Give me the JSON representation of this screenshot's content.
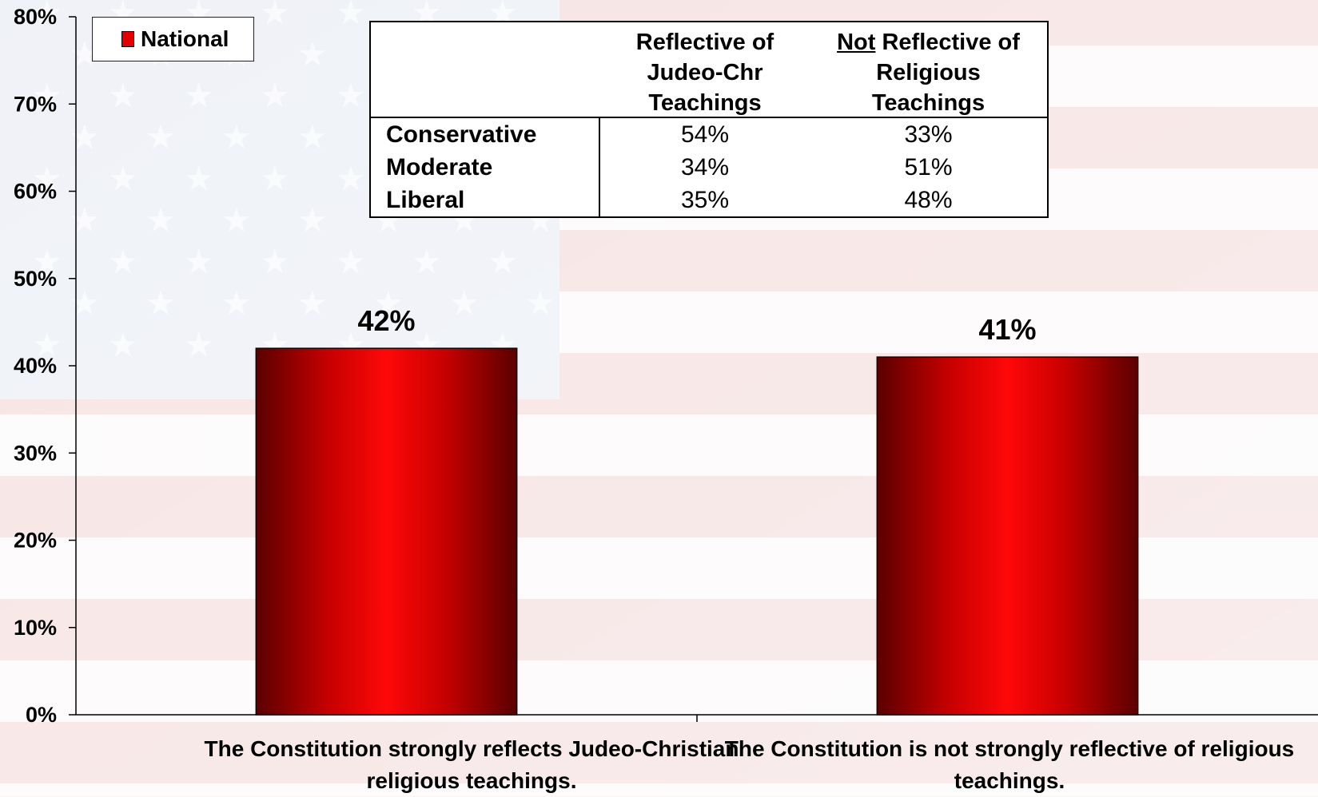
{
  "chart_data": {
    "type": "bar",
    "categories": [
      "The Constitution strongly reflects Judeo-Christian religious teachings.",
      "The Constitution is not strongly reflective of religious teachings."
    ],
    "category_lines": [
      [
        "The Constitution strongly reflects Judeo-Christian",
        "religious teachings."
      ],
      [
        "The Constitution is not strongly reflective of religious",
        "teachings."
      ]
    ],
    "series": [
      {
        "name": "National",
        "values": [
          42,
          41
        ],
        "labels": [
          "42%",
          "41%"
        ]
      }
    ],
    "ylim": [
      0,
      80
    ],
    "yticks": [
      "0%",
      "10%",
      "20%",
      "30%",
      "40%",
      "50%",
      "60%",
      "70%",
      "80%"
    ],
    "legend_position": "top-left",
    "grid": false,
    "bar_color": "#e00000",
    "inset_table": {
      "columns": [
        "",
        "Reflective of Judeo-Chr Teachings",
        "Not Reflective of Religious Teachings"
      ],
      "rows": [
        [
          "Conservative",
          "54%",
          "33%"
        ],
        [
          "Moderate",
          "34%",
          "51%"
        ],
        [
          "Liberal",
          "35%",
          "48%"
        ]
      ]
    }
  },
  "display": {
    "legend_label": "National",
    "table_head": {
      "col1_lines": [
        "Reflective of",
        "Judeo-Chr",
        "Teachings"
      ],
      "col2_not": "Not",
      "col2_line1_rest": " Reflective of",
      "col2_lines": [
        "Religious",
        "Teachings"
      ]
    }
  }
}
